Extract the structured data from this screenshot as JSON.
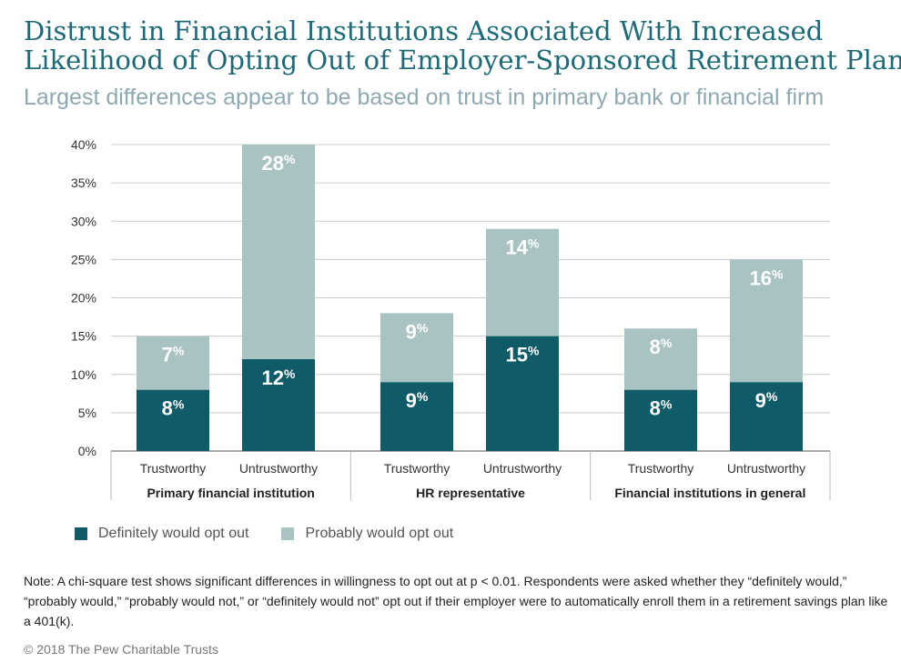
{
  "title_lines": [
    "Distrust in Financial Institutions Associated With Increased",
    "Likelihood of Opting Out of Employer-Sponsored Retirement Plan"
  ],
  "subtitle": "Largest differences appear to be based on trust in primary bank or financial firm",
  "legend": {
    "definitely": "Definitely would opt out",
    "probably": "Probably would opt out"
  },
  "colors": {
    "definitely": "#0f5b68",
    "probably": "#a9c3c3",
    "title": "#1d6a78",
    "subtitle": "#8fa9b0"
  },
  "note": "Note: A chi-square test shows significant differences in willingness to opt out at p < 0.01. Respondents were asked whether they “definitely would,” “probably would,” “probably would not,” or “definitely would not” opt out if their employer were to automatically enroll them in a retirement savings plan like a 401(k).",
  "credit": "© 2018 The Pew Charitable Trusts",
  "chart_data": {
    "type": "bar",
    "stacked": true,
    "ylim": [
      0,
      40
    ],
    "yticks": [
      "0%",
      "5%",
      "10%",
      "15%",
      "20%",
      "25%",
      "30%",
      "35%",
      "40%"
    ],
    "groups": [
      "Primary financial institution",
      "HR representative",
      "Financial institutions in general"
    ],
    "categories": [
      "Trustworthy",
      "Untrustworthy",
      "Trustworthy",
      "Untrustworthy",
      "Trustworthy",
      "Untrustworthy"
    ],
    "series": [
      {
        "name": "Definitely would opt out",
        "values": [
          8,
          12,
          9,
          15,
          8,
          9
        ]
      },
      {
        "name": "Probably would opt out",
        "values": [
          7,
          28,
          9,
          14,
          8,
          16
        ]
      }
    ],
    "grid": true,
    "legend_position": "bottom-left"
  }
}
